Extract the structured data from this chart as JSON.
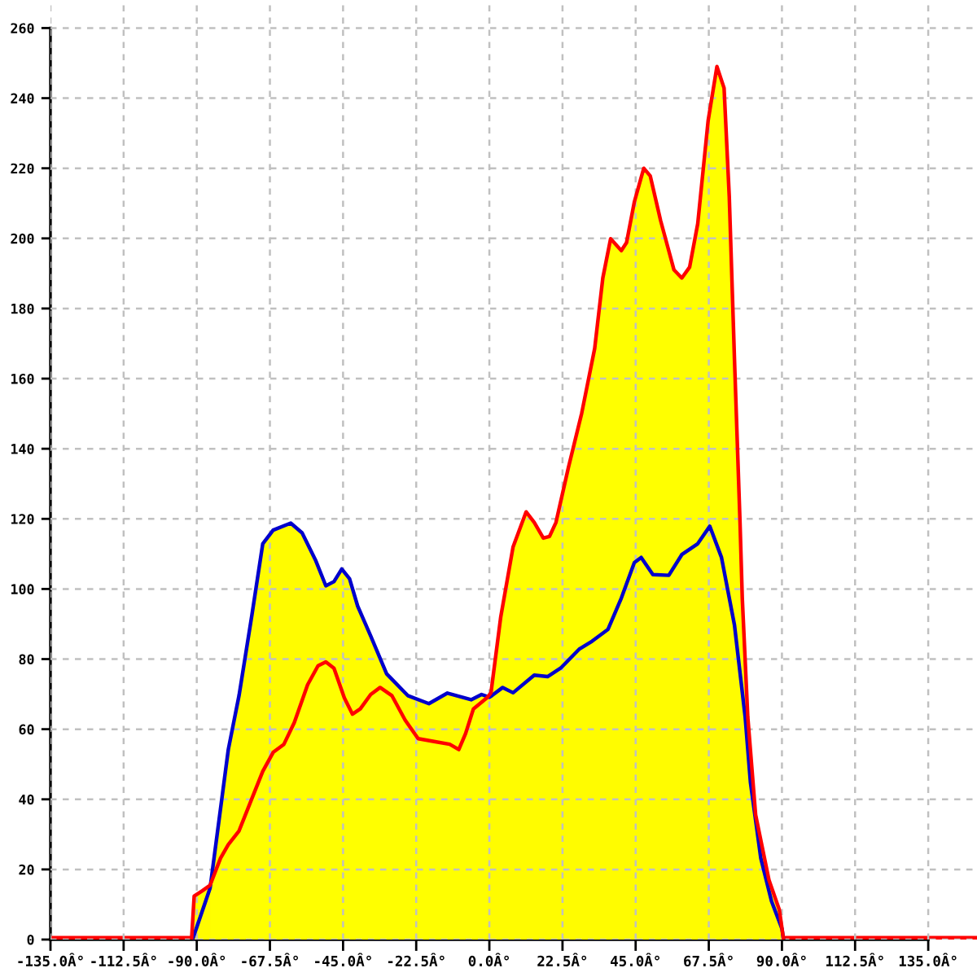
{
  "chart_data": {
    "type": "area",
    "xlim": [
      -135,
      150
    ],
    "ylim": [
      0,
      268
    ],
    "xticks": [
      {
        "value": -135,
        "label": "-135.0Â°"
      },
      {
        "value": -112.5,
        "label": "-112.5Â°"
      },
      {
        "value": -90,
        "label": "-90.0Â°"
      },
      {
        "value": -67.5,
        "label": "-67.5Â°"
      },
      {
        "value": -45,
        "label": "-45.0Â°"
      },
      {
        "value": -22.5,
        "label": "-22.5Â°"
      },
      {
        "value": 0,
        "label": "0.0Â°"
      },
      {
        "value": 22.5,
        "label": "22.5Â°"
      },
      {
        "value": 45,
        "label": "45.0Â°"
      },
      {
        "value": 67.5,
        "label": "67.5Â°"
      },
      {
        "value": 90,
        "label": "90.0Â°"
      },
      {
        "value": 112.5,
        "label": "112.5Â°"
      },
      {
        "value": 135,
        "label": "135.0Â°"
      }
    ],
    "yticks": [
      0,
      20,
      40,
      60,
      80,
      100,
      120,
      140,
      160,
      180,
      200,
      220,
      240,
      260
    ],
    "grid": true,
    "legend": false,
    "ref_lines": [
      {
        "axis": "y",
        "value": 0,
        "color": "#ff0000"
      }
    ],
    "colors": [
      "#0000cc",
      "#ff0000"
    ],
    "series": [
      {
        "color": "#fffc00",
        "x": [
          -91.3,
          -85.9,
          -80.3,
          -77.0,
          -73.0,
          -69.7,
          -66.5,
          -61.1,
          -57.6,
          -53.5,
          -50.3,
          -47.8,
          -45.4,
          -43.0,
          -40.5,
          -36.5,
          -31.6,
          -25.1,
          -18.6,
          -12.9,
          -5.6,
          -2.4,
          0,
          0.8,
          4.1,
          7.3,
          13.8,
          17.9,
          21.9,
          27.6,
          31.6,
          36.5,
          40.6,
          44.6,
          46.7,
          50.3,
          55.2,
          59.2,
          64.1,
          67.8,
          71.4,
          75.4,
          78.7,
          80.3,
          83.5,
          86.8,
          90.0,
          90.5
        ],
        "values": [
          0,
          14.7,
          54.2,
          69.6,
          92.8,
          112.9,
          116.8,
          118.8,
          116.0,
          108.3,
          100.9,
          102.1,
          105.7,
          102.9,
          95.1,
          86.6,
          75.8,
          69.6,
          67.3,
          70.3,
          68.4,
          69.9,
          69.1,
          69.6,
          71.9,
          70.4,
          75.4,
          75.0,
          77.4,
          82.8,
          85.1,
          88.5,
          97.4,
          107.5,
          109.0,
          104.1,
          103.9,
          109.8,
          112.9,
          117.9,
          109.0,
          89.7,
          63.4,
          44.9,
          23.2,
          10.9,
          3.1,
          0
        ]
      },
      {
        "color": "#ffff00",
        "x": [
          -91.6,
          -90.8,
          -88.3,
          -85.9,
          -82.7,
          -80.3,
          -77.0,
          -73.7,
          -69.7,
          -66.5,
          -63.2,
          -60.0,
          -55.9,
          -52.7,
          -50.3,
          -47.8,
          -44.6,
          -42.1,
          -39.7,
          -36.5,
          -33.6,
          -30.0,
          -25.9,
          -21.9,
          -17.0,
          -12.2,
          -9.4,
          -7.3,
          -4.9,
          -0.8,
          0.5,
          3.5,
          7.3,
          11.3,
          13.8,
          16.6,
          18.5,
          20.5,
          24.3,
          28.4,
          32.4,
          34.9,
          37.3,
          40.6,
          42.2,
          44.6,
          47.5,
          49.5,
          52.7,
          56.8,
          59.2,
          61.6,
          64.1,
          67.3,
          70.0,
          72.2,
          73.8,
          75.4,
          77.1,
          77.8,
          79.5,
          81.9,
          86.0,
          89.2,
          90.5
        ],
        "values": [
          0,
          12.4,
          13.9,
          15.5,
          23.2,
          27.1,
          31.0,
          38.7,
          48.0,
          53.4,
          55.7,
          61.9,
          72.7,
          78.1,
          79.2,
          77.4,
          68.9,
          64.3,
          65.8,
          69.9,
          71.9,
          69.6,
          62.6,
          57.3,
          56.5,
          55.7,
          54.2,
          58.8,
          65.8,
          68.9,
          70.4,
          92.0,
          112.0,
          122.0,
          119.0,
          114.5,
          115.0,
          119.0,
          134.6,
          150.1,
          168.6,
          188.7,
          199.9,
          196.5,
          198.8,
          210.4,
          220.0,
          217.8,
          205.0,
          191.0,
          188.7,
          191.8,
          204.2,
          233.6,
          249.0,
          242.9,
          211.9,
          165.5,
          119.1,
          97.4,
          63.4,
          35.6,
          17.0,
          8.5,
          0
        ]
      }
    ]
  }
}
